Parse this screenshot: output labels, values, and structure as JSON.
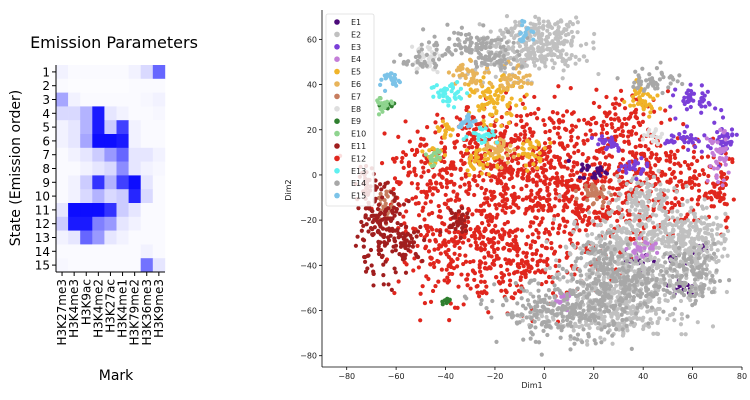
{
  "chart_data": [
    {
      "type": "heatmap",
      "title": "Emission Parameters",
      "xlabel": "Mark",
      "ylabel": "State (Emission order)",
      "x_categories": [
        "H3K27me3",
        "H3K4me3",
        "H3K9ac",
        "H3K4me2",
        "H3K27ac",
        "H3K4me1",
        "H3K79me2",
        "H3K36me3",
        "H3K9me3"
      ],
      "y_categories": [
        "1",
        "2",
        "3",
        "4",
        "5",
        "6",
        "7",
        "8",
        "9",
        "10",
        "11",
        "12",
        "13",
        "14",
        "15"
      ],
      "colormap": [
        "#ffffff",
        "#0000ff"
      ],
      "values": [
        [
          0.05,
          0.02,
          0.02,
          0.02,
          0.02,
          0.02,
          0.05,
          0.15,
          0.6
        ],
        [
          0.02,
          0.01,
          0.01,
          0.01,
          0.01,
          0.01,
          0.02,
          0.02,
          0.02
        ],
        [
          0.35,
          0.05,
          0.02,
          0.02,
          0.02,
          0.02,
          0.02,
          0.03,
          0.05
        ],
        [
          0.15,
          0.15,
          0.3,
          0.9,
          0.1,
          0.05,
          0.02,
          0.02,
          0.03
        ],
        [
          0.05,
          0.1,
          0.3,
          0.9,
          0.2,
          0.75,
          0.05,
          0.02,
          0.02
        ],
        [
          0.05,
          0.1,
          0.35,
          0.95,
          0.95,
          0.9,
          0.05,
          0.02,
          0.02
        ],
        [
          0.02,
          0.05,
          0.1,
          0.2,
          0.4,
          0.6,
          0.1,
          0.1,
          0.05
        ],
        [
          0.02,
          0.02,
          0.05,
          0.1,
          0.15,
          0.45,
          0.1,
          0.05,
          0.03
        ],
        [
          0.02,
          0.05,
          0.2,
          0.8,
          0.3,
          0.75,
          0.95,
          0.1,
          0.02
        ],
        [
          0.02,
          0.05,
          0.15,
          0.3,
          0.15,
          0.2,
          0.85,
          0.15,
          0.02
        ],
        [
          0.1,
          0.95,
          0.95,
          0.95,
          0.8,
          0.2,
          0.1,
          0.02,
          0.02
        ],
        [
          0.2,
          0.9,
          0.9,
          0.5,
          0.4,
          0.1,
          0.05,
          0.02,
          0.02
        ],
        [
          0.05,
          0.1,
          0.6,
          0.4,
          0.1,
          0.05,
          0.02,
          0.02,
          0.02
        ],
        [
          0.02,
          0.02,
          0.02,
          0.02,
          0.02,
          0.02,
          0.02,
          0.05,
          0.02
        ],
        [
          0.03,
          0.02,
          0.02,
          0.02,
          0.02,
          0.02,
          0.02,
          0.55,
          0.1
        ]
      ]
    },
    {
      "type": "scatter",
      "xlabel": "Dim1",
      "ylabel": "Dim2",
      "xlim": [
        -90,
        80
      ],
      "ylim": [
        -85,
        73
      ],
      "xticks": [
        -80,
        -60,
        -40,
        -20,
        0,
        20,
        40,
        60,
        80
      ],
      "yticks": [
        -80,
        -60,
        -40,
        -20,
        0,
        20,
        40,
        60
      ],
      "legend_position": "upper-left",
      "series": [
        {
          "name": "E1",
          "color": "#4b0a7a",
          "centers": [
            [
              56,
              -50,
              3,
              2
            ],
            [
              38,
              -38,
              3,
              2
            ],
            [
              52,
              -37,
              2,
              1
            ],
            [
              20,
              2,
              3,
              2
            ],
            [
              64,
              -33,
              2,
              1
            ]
          ]
        },
        {
          "name": "E2",
          "color": "#c0c0c0",
          "centers": [
            [
              30,
              -45,
              12,
              10
            ],
            [
              22,
              -62,
              14,
              5
            ],
            [
              48,
              -25,
              15,
              6
            ],
            [
              60,
              -38,
              6,
              10
            ],
            [
              2,
              60,
              8,
              6
            ],
            [
              -10,
              55,
              10,
              6
            ],
            [
              40,
              -10,
              6,
              5
            ]
          ]
        },
        {
          "name": "E3",
          "color": "#7a3fd8",
          "centers": [
            [
              62,
              33,
              4,
              3
            ],
            [
              72,
              15,
              3,
              4
            ],
            [
              57,
              16,
              4,
              2
            ],
            [
              36,
              3,
              3,
              2
            ],
            [
              26,
              14,
              3,
              2
            ]
          ]
        },
        {
          "name": "E4",
          "color": "#c37ed8",
          "centers": [
            [
              70,
              8,
              2,
              6
            ],
            [
              8,
              -55,
              2,
              2
            ],
            [
              40,
              -33,
              3,
              2
            ]
          ]
        },
        {
          "name": "E5",
          "color": "#f0b429",
          "centers": [
            [
              -20,
              33,
              5,
              5
            ],
            [
              40,
              35,
              3,
              4
            ],
            [
              -40,
              20,
              2,
              2
            ],
            [
              -45,
              8,
              2,
              2
            ],
            [
              -25,
              7,
              4,
              3
            ],
            [
              -5,
              10,
              3,
              3
            ]
          ]
        },
        {
          "name": "E6",
          "color": "#e8b45a",
          "centers": [
            [
              -30,
              45,
              4,
              3
            ],
            [
              -12,
              43,
              3,
              3
            ],
            [
              -18,
              12,
              3,
              3
            ]
          ]
        },
        {
          "name": "E7",
          "color": "#c77d5f",
          "centers": [
            [
              -64,
              -15,
              2,
              4
            ],
            [
              20,
              -8,
              3,
              3
            ]
          ]
        },
        {
          "name": "E8",
          "color": "#dedede",
          "centers": [
            [
              -48,
              52,
              3,
              3
            ],
            [
              44,
              18,
              2,
              2
            ]
          ]
        },
        {
          "name": "E9",
          "color": "#2f7f2f",
          "centers": [
            [
              -64,
              31,
              2,
              1
            ],
            [
              -40,
              -56,
              1,
              1
            ]
          ]
        },
        {
          "name": "E10",
          "color": "#8fd48f",
          "centers": [
            [
              -66,
              31,
              2,
              2
            ],
            [
              -44,
              8,
              2,
              2
            ]
          ]
        },
        {
          "name": "E11",
          "color": "#a01e1e",
          "centers": [
            [
              -67,
              -25,
              5,
              10
            ],
            [
              -72,
              -5,
              2,
              4
            ],
            [
              -55,
              -30,
              3,
              4
            ],
            [
              -35,
              -20,
              3,
              3
            ]
          ]
        },
        {
          "name": "E12",
          "color": "#e0261d",
          "centers": [
            [
              -20,
              -10,
              18,
              16
            ],
            [
              0,
              5,
              18,
              14
            ],
            [
              -30,
              15,
              10,
              8
            ],
            [
              20,
              -15,
              14,
              12
            ],
            [
              40,
              5,
              12,
              8
            ],
            [
              -35,
              -35,
              12,
              10
            ],
            [
              -10,
              -40,
              14,
              10
            ],
            [
              55,
              -5,
              10,
              10
            ],
            [
              30,
              25,
              10,
              6
            ],
            [
              -50,
              0,
              6,
              10
            ],
            [
              70,
              -5,
              3,
              8
            ]
          ]
        },
        {
          "name": "E13",
          "color": "#5ff0f0",
          "centers": [
            [
              -38,
              36,
              4,
              3
            ],
            [
              -25,
              18,
              3,
              2
            ]
          ]
        },
        {
          "name": "E14",
          "color": "#a8a8a8",
          "centers": [
            [
              -28,
              58,
              10,
              3
            ],
            [
              -50,
              50,
              4,
              2
            ],
            [
              -20,
              50,
              5,
              2
            ],
            [
              10,
              -60,
              14,
              7
            ],
            [
              38,
              -50,
              6,
              5
            ],
            [
              25,
              -40,
              6,
              6
            ],
            [
              45,
              42,
              5,
              3
            ],
            [
              60,
              -45,
              6,
              6
            ]
          ]
        },
        {
          "name": "E15",
          "color": "#7cc3e8",
          "centers": [
            [
              -62,
              42,
              3,
              2
            ],
            [
              -8,
              63,
              2,
              2
            ],
            [
              -32,
              24,
              2,
              2
            ]
          ]
        }
      ]
    }
  ]
}
